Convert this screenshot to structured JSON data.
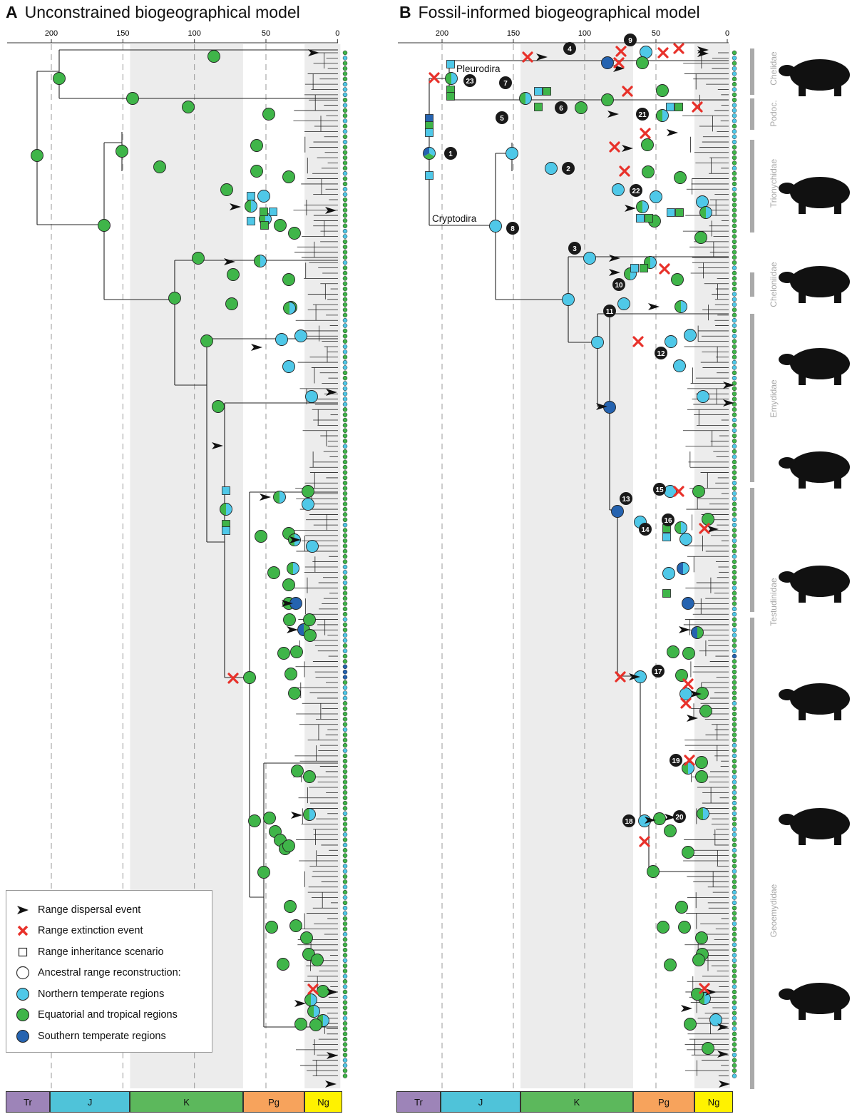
{
  "panels": [
    {
      "letter": "A",
      "title": "Unconstrained biogeographical model"
    },
    {
      "letter": "B",
      "title": "Fossil-informed biogeographical model"
    }
  ],
  "axis": {
    "ticks": [
      "200",
      "150",
      "100",
      "50",
      "0"
    ]
  },
  "eras": [
    {
      "label": "Tr",
      "color": "#9d84b8"
    },
    {
      "label": "J",
      "color": "#4fc3d9"
    },
    {
      "label": "K",
      "color": "#5cb85c"
    },
    {
      "label": "Pg",
      "color": "#f7a35c"
    },
    {
      "label": "Ng",
      "color": "#fff200"
    }
  ],
  "clade_labels": {
    "pleurodira": "Pleurodira",
    "cryptodira": "Cryptodira"
  },
  "families": [
    "Chelidae",
    "Podoc.",
    "Trionychidae",
    "Cheloniidae",
    "Emydidae",
    "Testudinidae",
    "Geoemydidae"
  ],
  "node_numbers": [
    "1",
    "2",
    "3",
    "4",
    "5",
    "6",
    "7",
    "8",
    "9",
    "10",
    "11",
    "12",
    "13",
    "14",
    "15",
    "16",
    "17",
    "18",
    "19",
    "20",
    "21",
    "22",
    "23"
  ],
  "legend": {
    "dispersal": "Range dispersal event",
    "extinction": "Range extinction event",
    "inheritance": "Range inheritance scenario",
    "ancestral": "Ancestral range reconstruction:",
    "northern": "Northern temperate regions",
    "equatorial": "Equatorial and tropical regions",
    "southern": "Southern temperate regions"
  },
  "colors": {
    "northern": "#4fc8e8",
    "equatorial": "#3fb549",
    "southern": "#2563b0",
    "extinction": "#e8312a",
    "shade": "#ececec"
  }
}
